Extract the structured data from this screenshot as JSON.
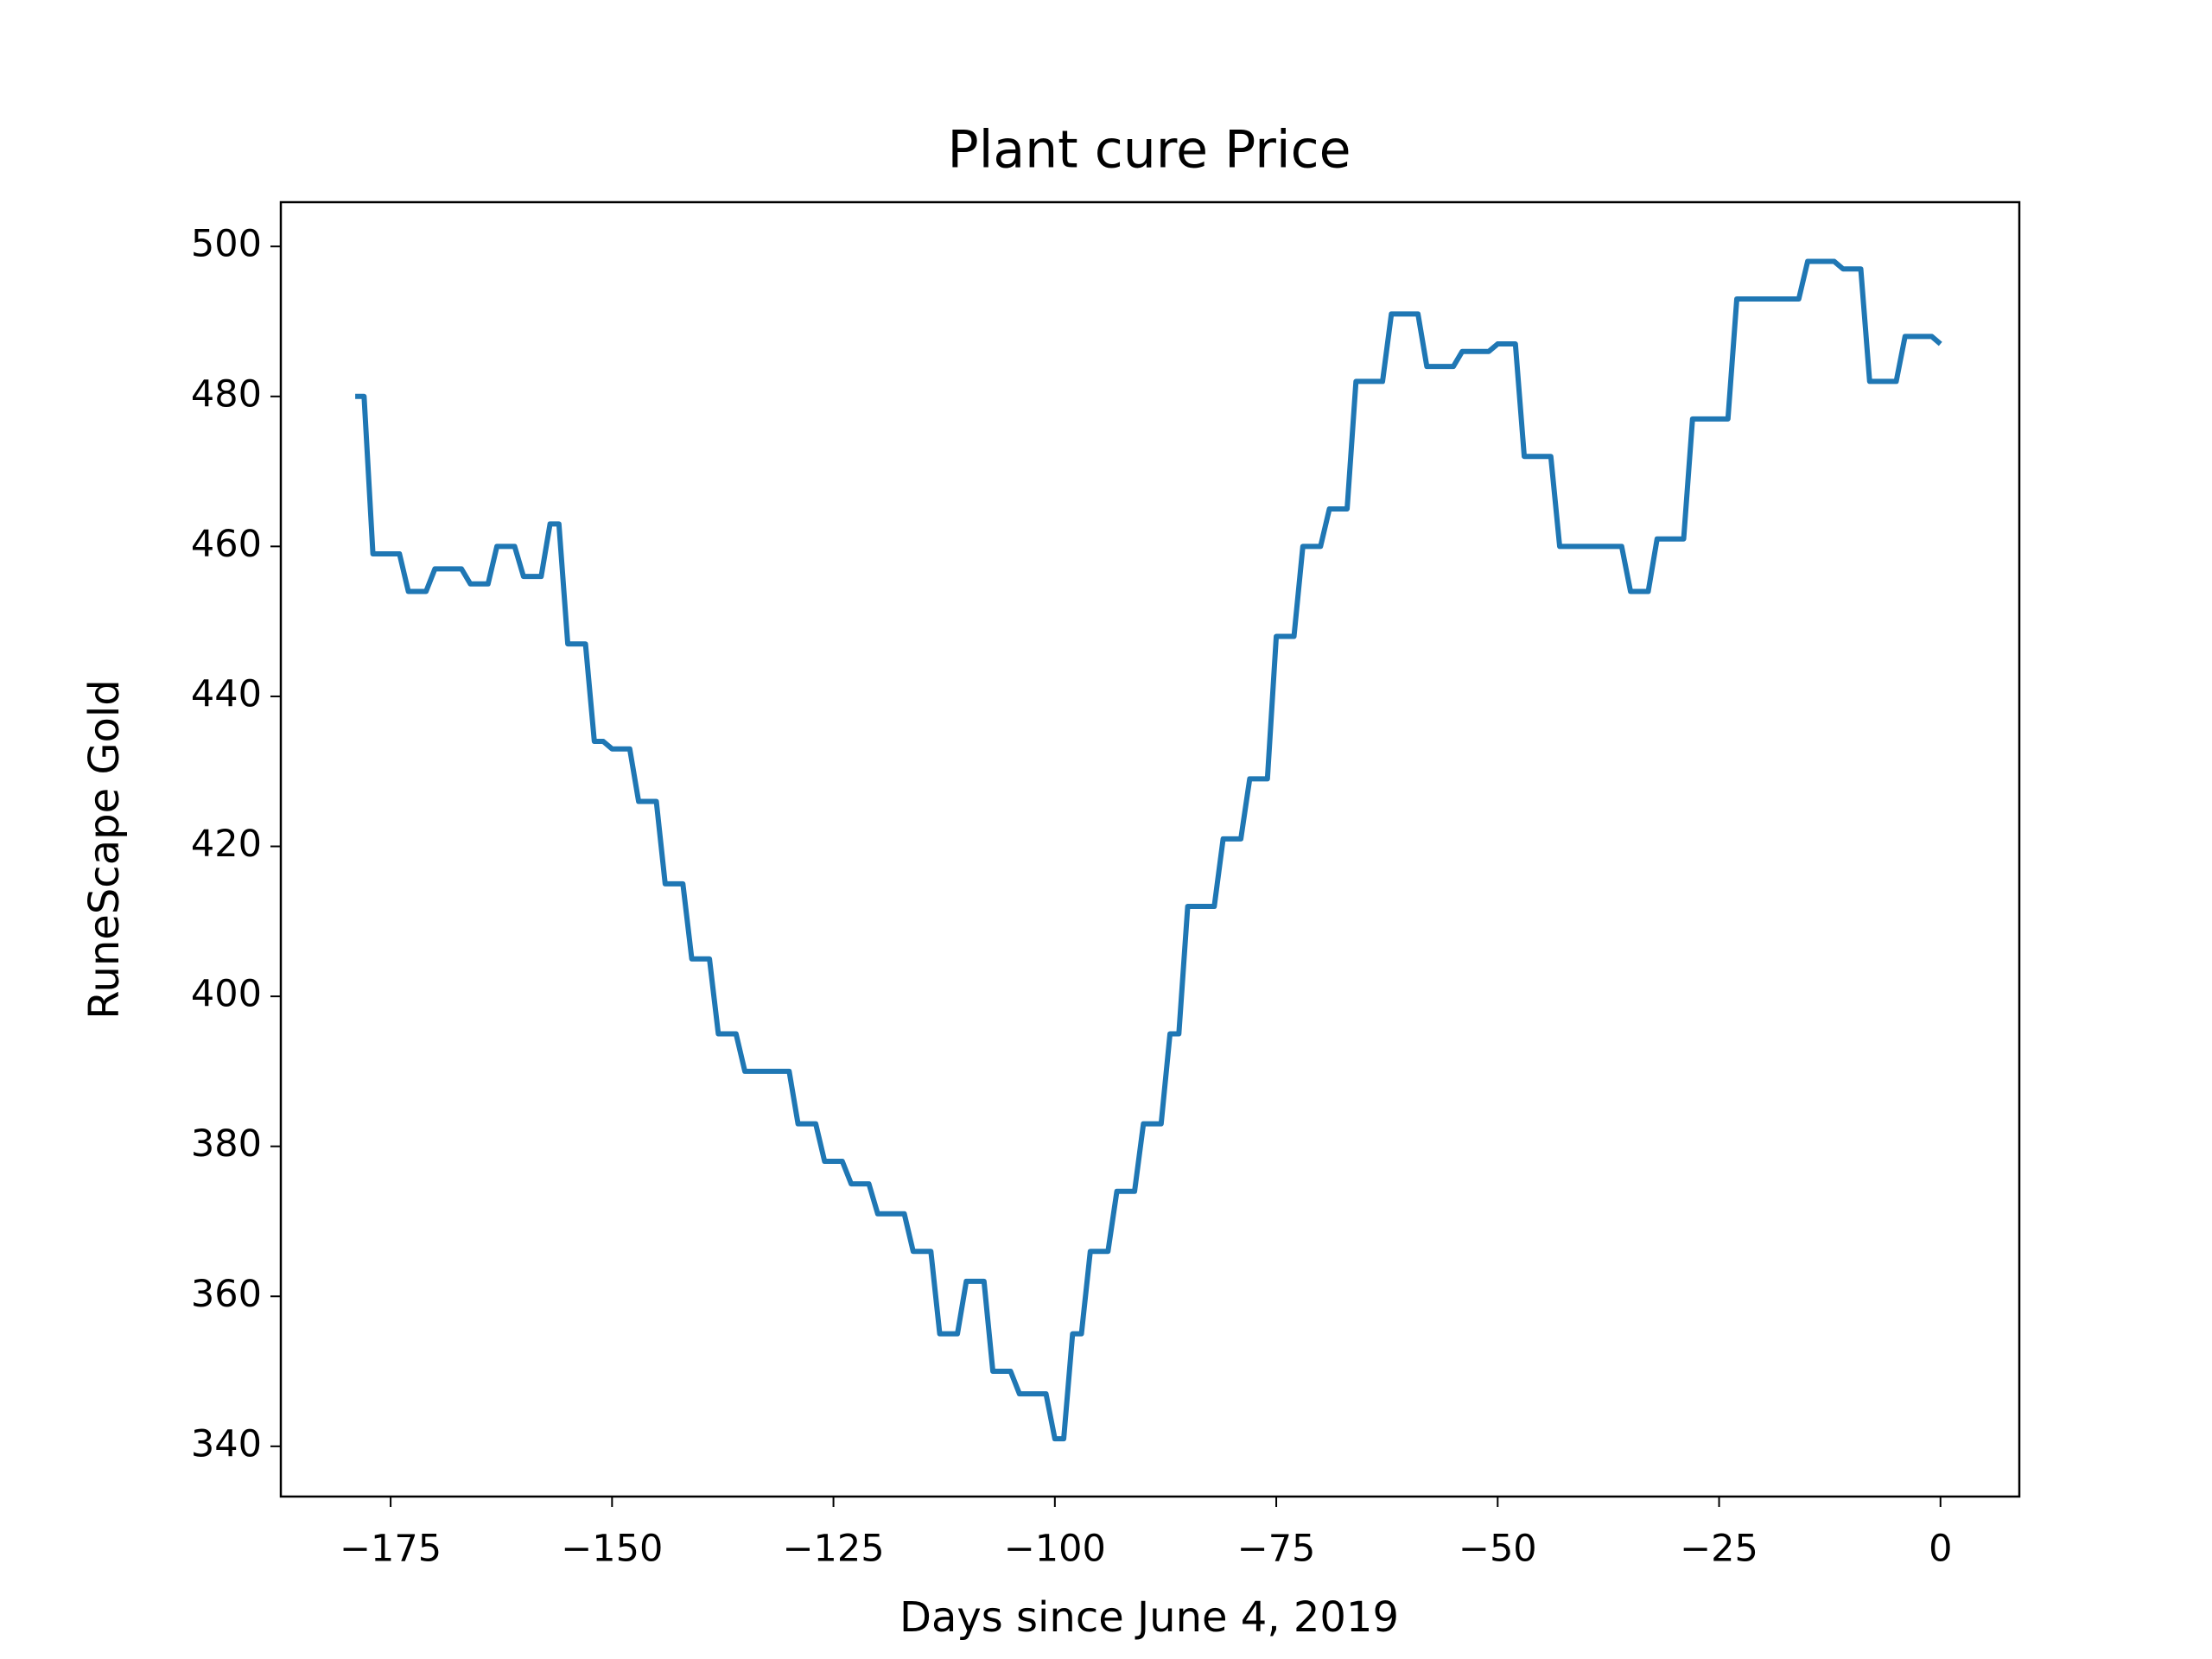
{
  "chart_data": {
    "type": "line",
    "title": "Plant cure Price",
    "xlabel": "Days since June 4, 2019",
    "ylabel": "RuneScape Gold",
    "x": [
      -179,
      -178,
      -177,
      -174,
      -173,
      -171,
      -170,
      -167,
      -166,
      -164,
      -163,
      -161,
      -160,
      -158,
      -157,
      -156,
      -155,
      -153,
      -152,
      -151,
      -150,
      -148,
      -147,
      -145,
      -144,
      -142,
      -141,
      -139,
      -138,
      -136,
      -135,
      -130,
      -129,
      -127,
      -126,
      -124,
      -123,
      -121,
      -120,
      -117,
      -116,
      -114,
      -113,
      -111,
      -110,
      -108,
      -107,
      -105,
      -104,
      -101,
      -100,
      -99,
      -98,
      -97,
      -96,
      -94,
      -93,
      -91,
      -90,
      -88,
      -87,
      -86,
      -85,
      -82,
      -81,
      -79,
      -78,
      -76,
      -75,
      -73,
      -72,
      -70,
      -69,
      -67,
      -66,
      -63,
      -62,
      -59,
      -58,
      -55,
      -54,
      -51,
      -50,
      -48,
      -47,
      -44,
      -43,
      -36,
      -35,
      -33,
      -32,
      -29,
      -28,
      -24,
      -23,
      -16,
      -15,
      -12,
      -11,
      -9,
      -8,
      -5,
      -4,
      -1,
      0
    ],
    "series": [
      {
        "name": "Plant cure",
        "color": "#1f77b4",
        "values": [
          480,
          480,
          459,
          459,
          454,
          454,
          457,
          457,
          455,
          455,
          460,
          460,
          456,
          456,
          463,
          463,
          447,
          447,
          434,
          434,
          433,
          433,
          426,
          426,
          415,
          415,
          405,
          405,
          395,
          395,
          390,
          390,
          383,
          383,
          378,
          378,
          375,
          375,
          371,
          371,
          366,
          366,
          355,
          355,
          362,
          362,
          350,
          350,
          347,
          347,
          341,
          341,
          355,
          355,
          366,
          366,
          374,
          374,
          383,
          383,
          395,
          395,
          412,
          412,
          421,
          421,
          429,
          429,
          448,
          448,
          460,
          460,
          465,
          465,
          482,
          482,
          491,
          491,
          484,
          484,
          486,
          486,
          487,
          487,
          472,
          472,
          460,
          460,
          454,
          454,
          461,
          461,
          477,
          477,
          493,
          493,
          498,
          498,
          497,
          497,
          482,
          482,
          488,
          488,
          487
        ]
      }
    ],
    "xlim": [
      -187.4,
      8.9
    ],
    "ylim": [
      333.3,
      505.9
    ],
    "xticks": [
      {
        "value": -175,
        "label": "−175"
      },
      {
        "value": -150,
        "label": "−150"
      },
      {
        "value": -125,
        "label": "−125"
      },
      {
        "value": -100,
        "label": "−100"
      },
      {
        "value": -75,
        "label": "−75"
      },
      {
        "value": -50,
        "label": "−50"
      },
      {
        "value": -25,
        "label": "−25"
      },
      0
    ],
    "yticks": [
      340,
      360,
      380,
      400,
      420,
      440,
      460,
      480,
      500
    ],
    "grid": false
  }
}
